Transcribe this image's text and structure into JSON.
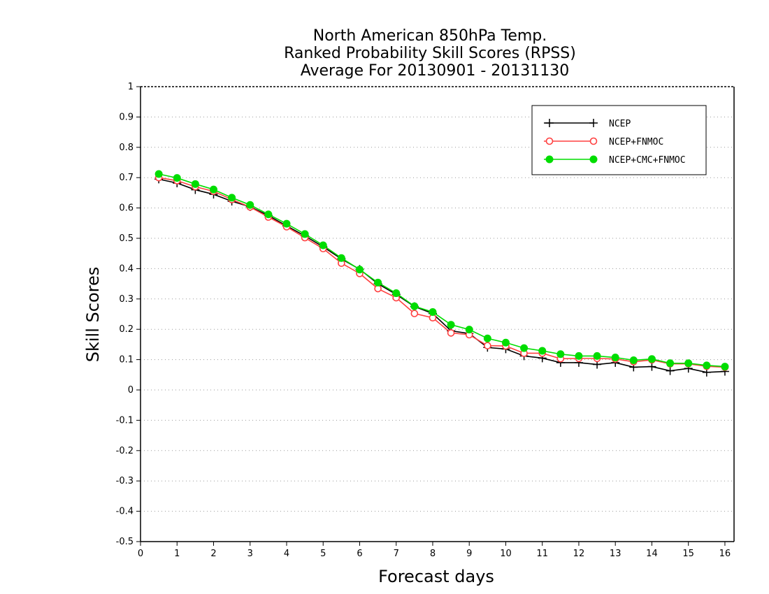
{
  "chart_data": {
    "type": "line",
    "title_lines": [
      "North American 850hPa Temp.",
      "Ranked Probability Skill Scores (RPSS)",
      "Average For 20130901 - 20131130"
    ],
    "xlabel": "Forecast days",
    "ylabel": "Skill Scores",
    "xlim": [
      0,
      16.25
    ],
    "ylim": [
      -0.5,
      1
    ],
    "x_ticks": [
      0,
      1,
      2,
      3,
      4,
      5,
      6,
      7,
      8,
      9,
      10,
      11,
      12,
      13,
      14,
      15,
      16
    ],
    "y_ticks": [
      -0.5,
      -0.4,
      -0.3,
      -0.2,
      -0.1,
      0,
      0.1,
      0.2,
      0.3,
      0.4,
      0.5,
      0.6,
      0.7,
      0.8,
      0.9,
      1
    ],
    "y_tick_labels": [
      "-0.5",
      "-0.4",
      "-0.3",
      "-0.2",
      "-0.1",
      "0",
      "0.1",
      "0.2",
      "0.3",
      "0.4",
      "0.5",
      "0.6",
      "0.7",
      "0.8",
      "0.9",
      "1"
    ],
    "grid": "horizontal dotted",
    "legend_position": "top-right",
    "x": [
      0.5,
      1,
      1.5,
      2,
      2.5,
      3,
      3.5,
      4,
      4.5,
      5,
      5.5,
      6,
      6.5,
      7,
      7.5,
      8,
      8.5,
      9,
      9.5,
      10,
      10.5,
      11,
      11.5,
      12,
      12.5,
      13,
      13.5,
      14,
      14.5,
      15,
      15.5,
      16
    ],
    "series": [
      {
        "name": "NCEP",
        "color": "#000000",
        "marker": "plus",
        "values": [
          0.695,
          0.682,
          0.66,
          0.645,
          0.622,
          0.604,
          0.575,
          0.541,
          0.508,
          0.472,
          0.432,
          0.398,
          0.35,
          0.315,
          0.275,
          0.252,
          0.195,
          0.186,
          0.14,
          0.135,
          0.112,
          0.105,
          0.09,
          0.09,
          0.084,
          0.09,
          0.075,
          0.077,
          0.063,
          0.071,
          0.058,
          0.061
        ]
      },
      {
        "name": "NCEP+FNMOC",
        "color": "#ff4040",
        "marker": "open-circle",
        "values": [
          0.7,
          0.69,
          0.67,
          0.655,
          0.628,
          0.603,
          0.57,
          0.538,
          0.502,
          0.466,
          0.418,
          0.384,
          0.334,
          0.304,
          0.252,
          0.238,
          0.188,
          0.182,
          0.146,
          0.145,
          0.121,
          0.121,
          0.103,
          0.104,
          0.104,
          0.102,
          0.093,
          0.099,
          0.086,
          0.086,
          0.078,
          0.075
        ]
      },
      {
        "name": "NCEP+CMC+FNMOC",
        "color": "#00dd00",
        "marker": "filled-circle",
        "values": [
          0.712,
          0.699,
          0.679,
          0.661,
          0.634,
          0.61,
          0.579,
          0.548,
          0.514,
          0.477,
          0.435,
          0.397,
          0.354,
          0.319,
          0.276,
          0.257,
          0.215,
          0.199,
          0.17,
          0.156,
          0.138,
          0.129,
          0.118,
          0.112,
          0.112,
          0.107,
          0.098,
          0.102,
          0.088,
          0.088,
          0.081,
          0.077
        ]
      }
    ]
  }
}
